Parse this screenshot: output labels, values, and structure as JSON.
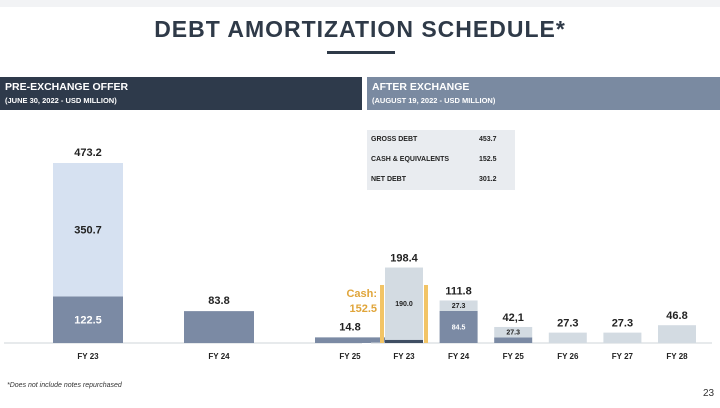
{
  "title": "DEBT AMORTIZATION SCHEDULE*",
  "footnote": "*Does not include notes repurchased",
  "page_number": "23",
  "colors": {
    "dark_navy": "#2e3a4b",
    "slate_blue": "#7a8aa1",
    "bar_pre_light": "#d6e1f1",
    "bar_pre_dark": "#7b8aa4",
    "bar_after_light": "#d3dbe2",
    "bar_after_dark": "#3f4e63",
    "cash_yellow": "#f2c466"
  },
  "summary_table": {
    "rows": [
      {
        "label": "GROSS DEBT",
        "value": "453.7"
      },
      {
        "label": "CASH & EQUIVALENTS",
        "value": "152.5"
      },
      {
        "label": "NET DEBT",
        "value": "301.2"
      }
    ]
  },
  "cash_annotation": {
    "line1": "Cash:",
    "line2": "152.5"
  },
  "chart_data": [
    {
      "type": "bar",
      "title": "PRE-EXCHANGE OFFER",
      "subtitle": "(JUNE 30, 2022 - USD MILLION)",
      "stacked": true,
      "ylim": [
        0,
        480
      ],
      "categories": [
        "FY 23",
        "FY 24",
        "FY 25"
      ],
      "totals": [
        "473.2",
        "83.8",
        "14.8"
      ],
      "series": [
        {
          "values": [
            122.5,
            83.8,
            14.8
          ],
          "labels": [
            "122.5",
            "",
            ""
          ]
        },
        {
          "values": [
            350.7,
            0,
            0
          ],
          "labels": [
            "350.7",
            "",
            ""
          ]
        }
      ]
    },
    {
      "type": "bar",
      "title": "AFTER EXCHANGE",
      "subtitle": "(AUGUST 19, 2022 - USD MILLION)",
      "stacked": true,
      "ylim": [
        0,
        480
      ],
      "categories": [
        "FY 23",
        "FY 24",
        "FY 25",
        "FY 26",
        "FY 27",
        "FY 28"
      ],
      "totals": [
        "198.4",
        "111.8",
        "42,1",
        "27.3",
        "27.3",
        "46.8"
      ],
      "series": [
        {
          "values": [
            8.4,
            84.5,
            14.8,
            27.3,
            27.3,
            46.8
          ],
          "labels": [
            "8.4",
            "84.5",
            "",
            "",
            "",
            ""
          ]
        },
        {
          "values": [
            190.0,
            27.3,
            27.3,
            0,
            0,
            0
          ],
          "labels": [
            "190.0",
            "27.3",
            "27.3",
            "",
            "",
            ""
          ]
        }
      ]
    }
  ]
}
